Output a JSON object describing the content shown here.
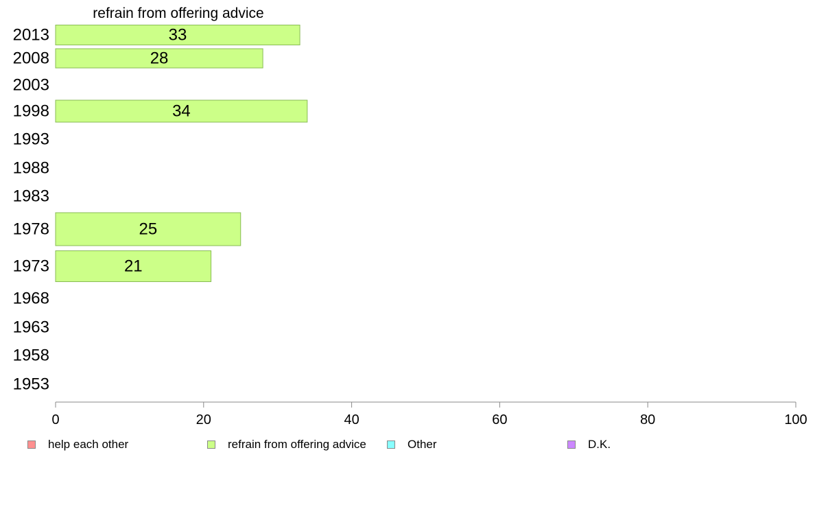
{
  "chart_data": {
    "type": "bar",
    "orientation": "horizontal",
    "title": "refrain from offering advice",
    "categories": [
      "2013",
      "2008",
      "2003",
      "1998",
      "1993",
      "1988",
      "1983",
      "1978",
      "1973",
      "1968",
      "1963",
      "1958",
      "1953"
    ],
    "values": [
      33,
      28,
      null,
      34,
      null,
      null,
      null,
      25,
      21,
      null,
      null,
      null,
      null
    ],
    "bar_labels": [
      "33",
      "28",
      "",
      "34",
      "",
      "",
      "",
      "25",
      "21",
      "",
      "",
      "",
      ""
    ],
    "xlim": [
      0,
      100
    ],
    "xticks": [
      "0",
      "20",
      "40",
      "60",
      "80",
      "100"
    ],
    "grid": false,
    "legend": {
      "placement": "bottom",
      "entries": [
        {
          "label": "help each other",
          "color": "#ff9090"
        },
        {
          "label": "refrain from offering advice",
          "color": "#ccff88"
        },
        {
          "label": "Other",
          "color": "#88ffff"
        },
        {
          "label": "D.K.",
          "color": "#cc88ff"
        }
      ]
    }
  }
}
